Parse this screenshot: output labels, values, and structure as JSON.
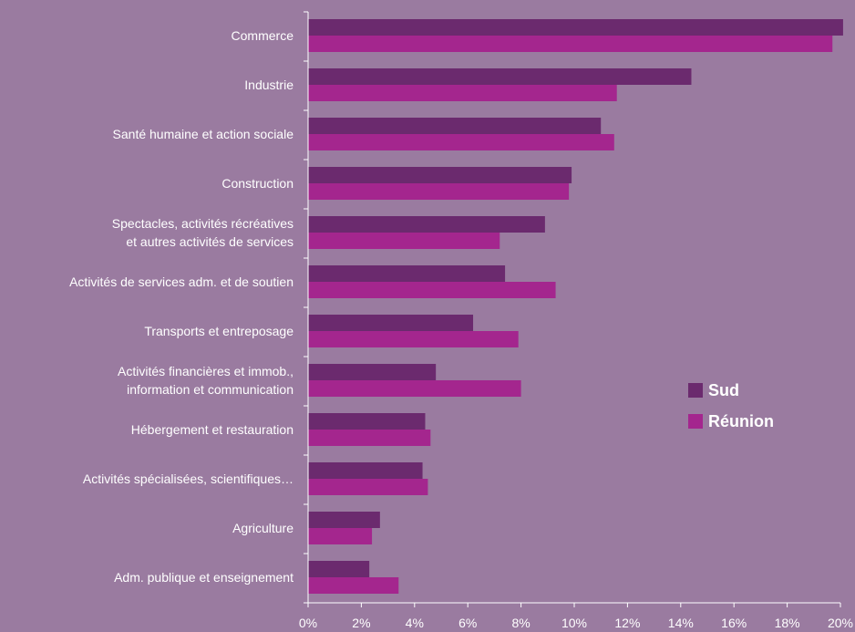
{
  "chart_data": {
    "type": "bar",
    "orientation": "horizontal",
    "categories": [
      [
        "Commerce"
      ],
      [
        "Industrie"
      ],
      [
        "Santé humaine et action sociale"
      ],
      [
        "Construction"
      ],
      [
        "Spectacles, activités récréatives",
        "et autres activités de services"
      ],
      [
        "Activités de services adm. et de soutien"
      ],
      [
        "Transports et entreposage"
      ],
      [
        "Activités financières et immob.,",
        "information et communication"
      ],
      [
        "Hébergement et restauration"
      ],
      [
        "Activités spécialisées, scientifiques…"
      ],
      [
        "Agriculture"
      ],
      [
        "Adm. publique et enseignement"
      ]
    ],
    "series": [
      {
        "name": "Sud",
        "color": "#6b2a6e",
        "values": [
          20.1,
          14.4,
          11.0,
          9.9,
          8.9,
          7.4,
          6.2,
          4.8,
          4.4,
          4.3,
          2.7,
          2.3
        ]
      },
      {
        "name": "Réunion",
        "color": "#a4268e",
        "values": [
          19.7,
          11.6,
          11.5,
          9.8,
          7.2,
          9.3,
          7.9,
          8.0,
          4.6,
          4.5,
          2.4,
          3.4
        ]
      }
    ],
    "xlim": [
      0,
      20
    ],
    "xticks": [
      "0%",
      "2%",
      "4%",
      "6%",
      "8%",
      "10%",
      "12%",
      "14%",
      "16%",
      "18%",
      "20%"
    ],
    "legend_position": "right",
    "grid": false
  }
}
